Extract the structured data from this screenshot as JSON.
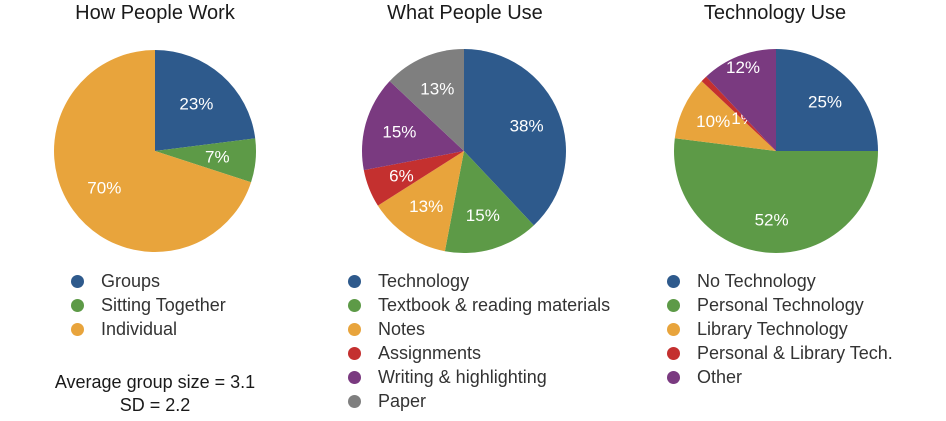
{
  "colors": {
    "blue": "#2e5a8c",
    "green": "#5d9a47",
    "orange": "#e8a43c",
    "red": "#c4302f",
    "purple": "#7a3a80",
    "gray": "#7f7f7f"
  },
  "chart_data": [
    {
      "type": "pie",
      "title": "How People Work",
      "slices": [
        {
          "name": "Groups",
          "value": 23,
          "label": "23%",
          "color": "#2e5a8c"
        },
        {
          "name": "Sitting Together",
          "value": 7,
          "label": "7%",
          "color": "#5d9a47"
        },
        {
          "name": "Individual",
          "value": 70,
          "label": "70%",
          "color": "#e8a43c"
        }
      ],
      "legend_position": "bottom"
    },
    {
      "type": "pie",
      "title": "What People Use",
      "slices": [
        {
          "name": "Technology",
          "value": 38,
          "label": "38%",
          "color": "#2e5a8c"
        },
        {
          "name": "Textbook & reading materials",
          "value": 15,
          "label": "15%",
          "color": "#5d9a47"
        },
        {
          "name": "Notes",
          "value": 13,
          "label": "13%",
          "color": "#e8a43c"
        },
        {
          "name": "Assignments",
          "value": 6,
          "label": "6%",
          "color": "#c4302f"
        },
        {
          "name": "Writing & highlighting",
          "value": 15,
          "label": "15%",
          "color": "#7a3a80"
        },
        {
          "name": "Paper",
          "value": 13,
          "label": "13%",
          "color": "#7f7f7f"
        }
      ],
      "legend_position": "bottom"
    },
    {
      "type": "pie",
      "title": "Technology Use",
      "slices": [
        {
          "name": "No Technology",
          "value": 25,
          "label": "25%",
          "color": "#2e5a8c"
        },
        {
          "name": "Personal Technology",
          "value": 52,
          "label": "52%",
          "color": "#5d9a47"
        },
        {
          "name": "Library Technology",
          "value": 10,
          "label": "10%",
          "color": "#e8a43c"
        },
        {
          "name": "Personal & Library Tech.",
          "value": 1,
          "label": "1%",
          "color": "#c4302f"
        },
        {
          "name": "Other",
          "value": 12,
          "label": "12%",
          "color": "#7a3a80"
        }
      ],
      "legend_position": "bottom"
    }
  ],
  "notes": {
    "group_size": "Average group size = 3.1",
    "sd": "SD = 2.2"
  }
}
